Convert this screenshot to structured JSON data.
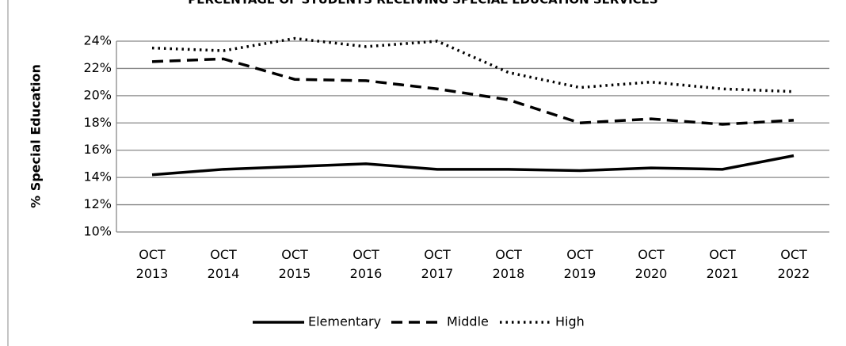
{
  "chart_data": {
    "type": "line",
    "title": "PERCENTAGE OF STUDENTS RECEIVING SPECIAL EDUCATION SERVICES",
    "y_label": "% Special Education",
    "categories": [
      "OCT 2013",
      "OCT 2014",
      "OCT 2015",
      "OCT 2016",
      "OCT 2017",
      "OCT 2018",
      "OCT 2019",
      "OCT 2020",
      "OCT 2021",
      "OCT 2022"
    ],
    "series": [
      {
        "name": "Elementary",
        "color": "#000000",
        "dash": "solid",
        "values": [
          14.2,
          14.6,
          14.8,
          15.0,
          14.6,
          14.6,
          14.5,
          14.7,
          14.6,
          15.6
        ]
      },
      {
        "name": "Middle",
        "color": "#000000",
        "dash": "dashed",
        "values": [
          22.5,
          22.7,
          21.2,
          21.1,
          20.5,
          19.7,
          18.0,
          18.3,
          17.9,
          18.2
        ]
      },
      {
        "name": "High",
        "color": "#000000",
        "dash": "dotted",
        "values": [
          23.5,
          23.3,
          24.2,
          23.6,
          24.0,
          21.7,
          20.6,
          21.0,
          20.5,
          20.3
        ]
      }
    ],
    "ylim": [
      10,
      24
    ],
    "yticks": [
      {
        "value": 10,
        "label": "10%"
      },
      {
        "value": 12,
        "label": "12%"
      },
      {
        "value": 14,
        "label": "14%"
      },
      {
        "value": 16,
        "label": "16%"
      },
      {
        "value": 18,
        "label": "18%"
      },
      {
        "value": 20,
        "label": "20%"
      },
      {
        "value": 22,
        "label": "22%"
      },
      {
        "value": 24,
        "label": "24%"
      }
    ],
    "grid": true,
    "legend": "bottom"
  }
}
